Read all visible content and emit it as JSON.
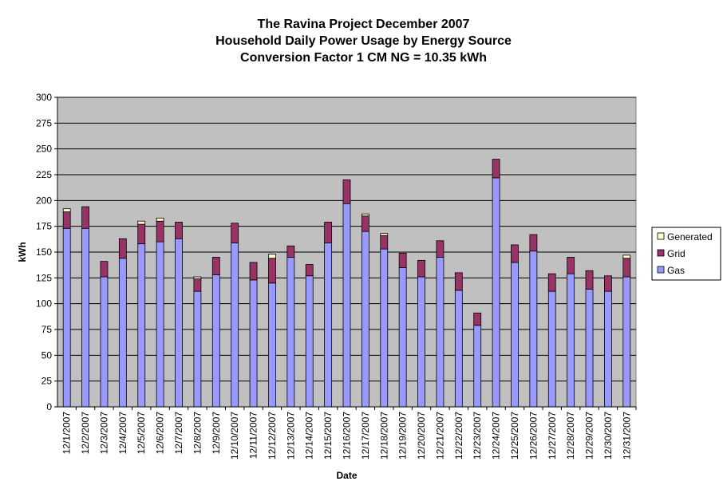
{
  "chart_data": {
    "type": "bar",
    "stacked": true,
    "title_lines": [
      "The Ravina Project December 2007",
      "Household Daily Power Usage by Energy Source",
      "Conversion Factor 1 CM NG = 10.35 kWh"
    ],
    "xlabel": "Date",
    "ylabel": "kWh",
    "ylim": [
      0,
      300
    ],
    "yticks": [
      0,
      25,
      50,
      75,
      100,
      125,
      150,
      175,
      200,
      225,
      250,
      275,
      300
    ],
    "grid": true,
    "legend_position": "right",
    "legend_order": [
      "Generated",
      "Grid",
      "Gas"
    ],
    "categories": [
      "12/1/2007",
      "12/2/2007",
      "12/3/2007",
      "12/4/2007",
      "12/5/2007",
      "12/6/2007",
      "12/7/2007",
      "12/8/2007",
      "12/9/2007",
      "12/10/2007",
      "12/11/2007",
      "12/12/2007",
      "12/13/2007",
      "12/14/2007",
      "12/15/2007",
      "12/16/2007",
      "12/17/2007",
      "12/18/2007",
      "12/19/2007",
      "12/20/2007",
      "12/21/2007",
      "12/22/2007",
      "12/23/2007",
      "12/24/2007",
      "12/25/2007",
      "12/26/2007",
      "12/27/2007",
      "12/28/2007",
      "12/29/2007",
      "12/30/2007",
      "12/31/2007"
    ],
    "series": [
      {
        "name": "Gas",
        "color": "#9999ff",
        "values": [
          173,
          173,
          126,
          144,
          158,
          160,
          163,
          112,
          128,
          159,
          123,
          120,
          145,
          127,
          159,
          197,
          170,
          153,
          135,
          126,
          145,
          113,
          79,
          222,
          140,
          151,
          112,
          129,
          114,
          112,
          126
        ]
      },
      {
        "name": "Grid",
        "color": "#993366",
        "values": [
          16,
          21,
          15,
          19,
          19,
          20,
          16,
          12,
          17,
          19,
          17,
          24,
          11,
          11,
          20,
          23,
          15,
          13,
          14,
          16,
          16,
          17,
          12,
          18,
          17,
          16,
          17,
          16,
          18,
          15,
          18
        ]
      },
      {
        "name": "Generated",
        "color": "#ffffcc",
        "values": [
          3,
          0,
          0,
          0,
          3,
          3,
          0,
          2,
          0,
          0,
          0,
          4,
          0,
          0,
          0,
          0,
          2,
          2,
          0,
          0,
          0,
          0,
          0,
          0,
          0,
          0,
          0,
          0,
          0,
          0,
          3
        ]
      }
    ]
  }
}
